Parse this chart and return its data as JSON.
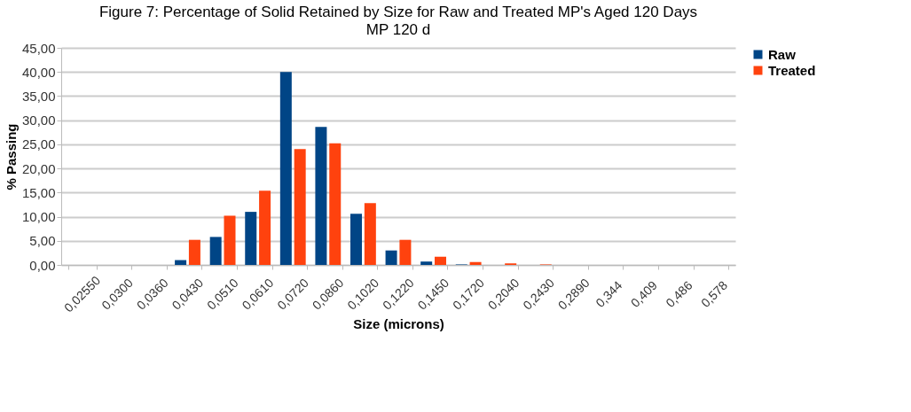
{
  "chart_data": {
    "type": "bar",
    "title": "Figure 7: Percentage of Solid Retained by Size for Raw and Treated MP's Aged 120 Days",
    "subtitle": "MP 120 d",
    "xlabel": "Size (microns)",
    "ylabel": "% Passing",
    "categories": [
      "0,02550",
      "0,0300",
      "0,0360",
      "0,0430",
      "0,0510",
      "0,0610",
      "0,0720",
      "0,0860",
      "0,1020",
      "0,1220",
      "0,1450",
      "0,1720",
      "0,2040",
      "0,2430",
      "0,2890",
      "0,344",
      "0,409",
      "0,486",
      "0,578"
    ],
    "series": [
      {
        "name": "Raw",
        "color": "#004586",
        "values": [
          null,
          null,
          null,
          1.0,
          5.8,
          11.0,
          40.0,
          28.6,
          10.6,
          3.0,
          0.7,
          0.1,
          null,
          null,
          null,
          null,
          null,
          null,
          null
        ]
      },
      {
        "name": "Treated",
        "color": "#ff420e",
        "values": [
          null,
          null,
          null,
          5.2,
          10.2,
          15.4,
          24.0,
          25.2,
          12.8,
          5.2,
          1.7,
          0.6,
          0.3,
          0.1,
          null,
          null,
          null,
          null,
          null
        ]
      }
    ],
    "ylim": [
      0,
      45
    ],
    "yticks": [
      {
        "value": 0,
        "label": "0,00"
      },
      {
        "value": 5,
        "label": "5,00"
      },
      {
        "value": 10,
        "label": "10,00"
      },
      {
        "value": 15,
        "label": "15,00"
      },
      {
        "value": 20,
        "label": "20,00"
      },
      {
        "value": 25,
        "label": "25,00"
      },
      {
        "value": 30,
        "label": "30,00"
      },
      {
        "value": 35,
        "label": "35,00"
      },
      {
        "value": 40,
        "label": "40,00"
      },
      {
        "value": 45,
        "label": "45,00"
      }
    ],
    "grid": "y",
    "legend": "right"
  }
}
